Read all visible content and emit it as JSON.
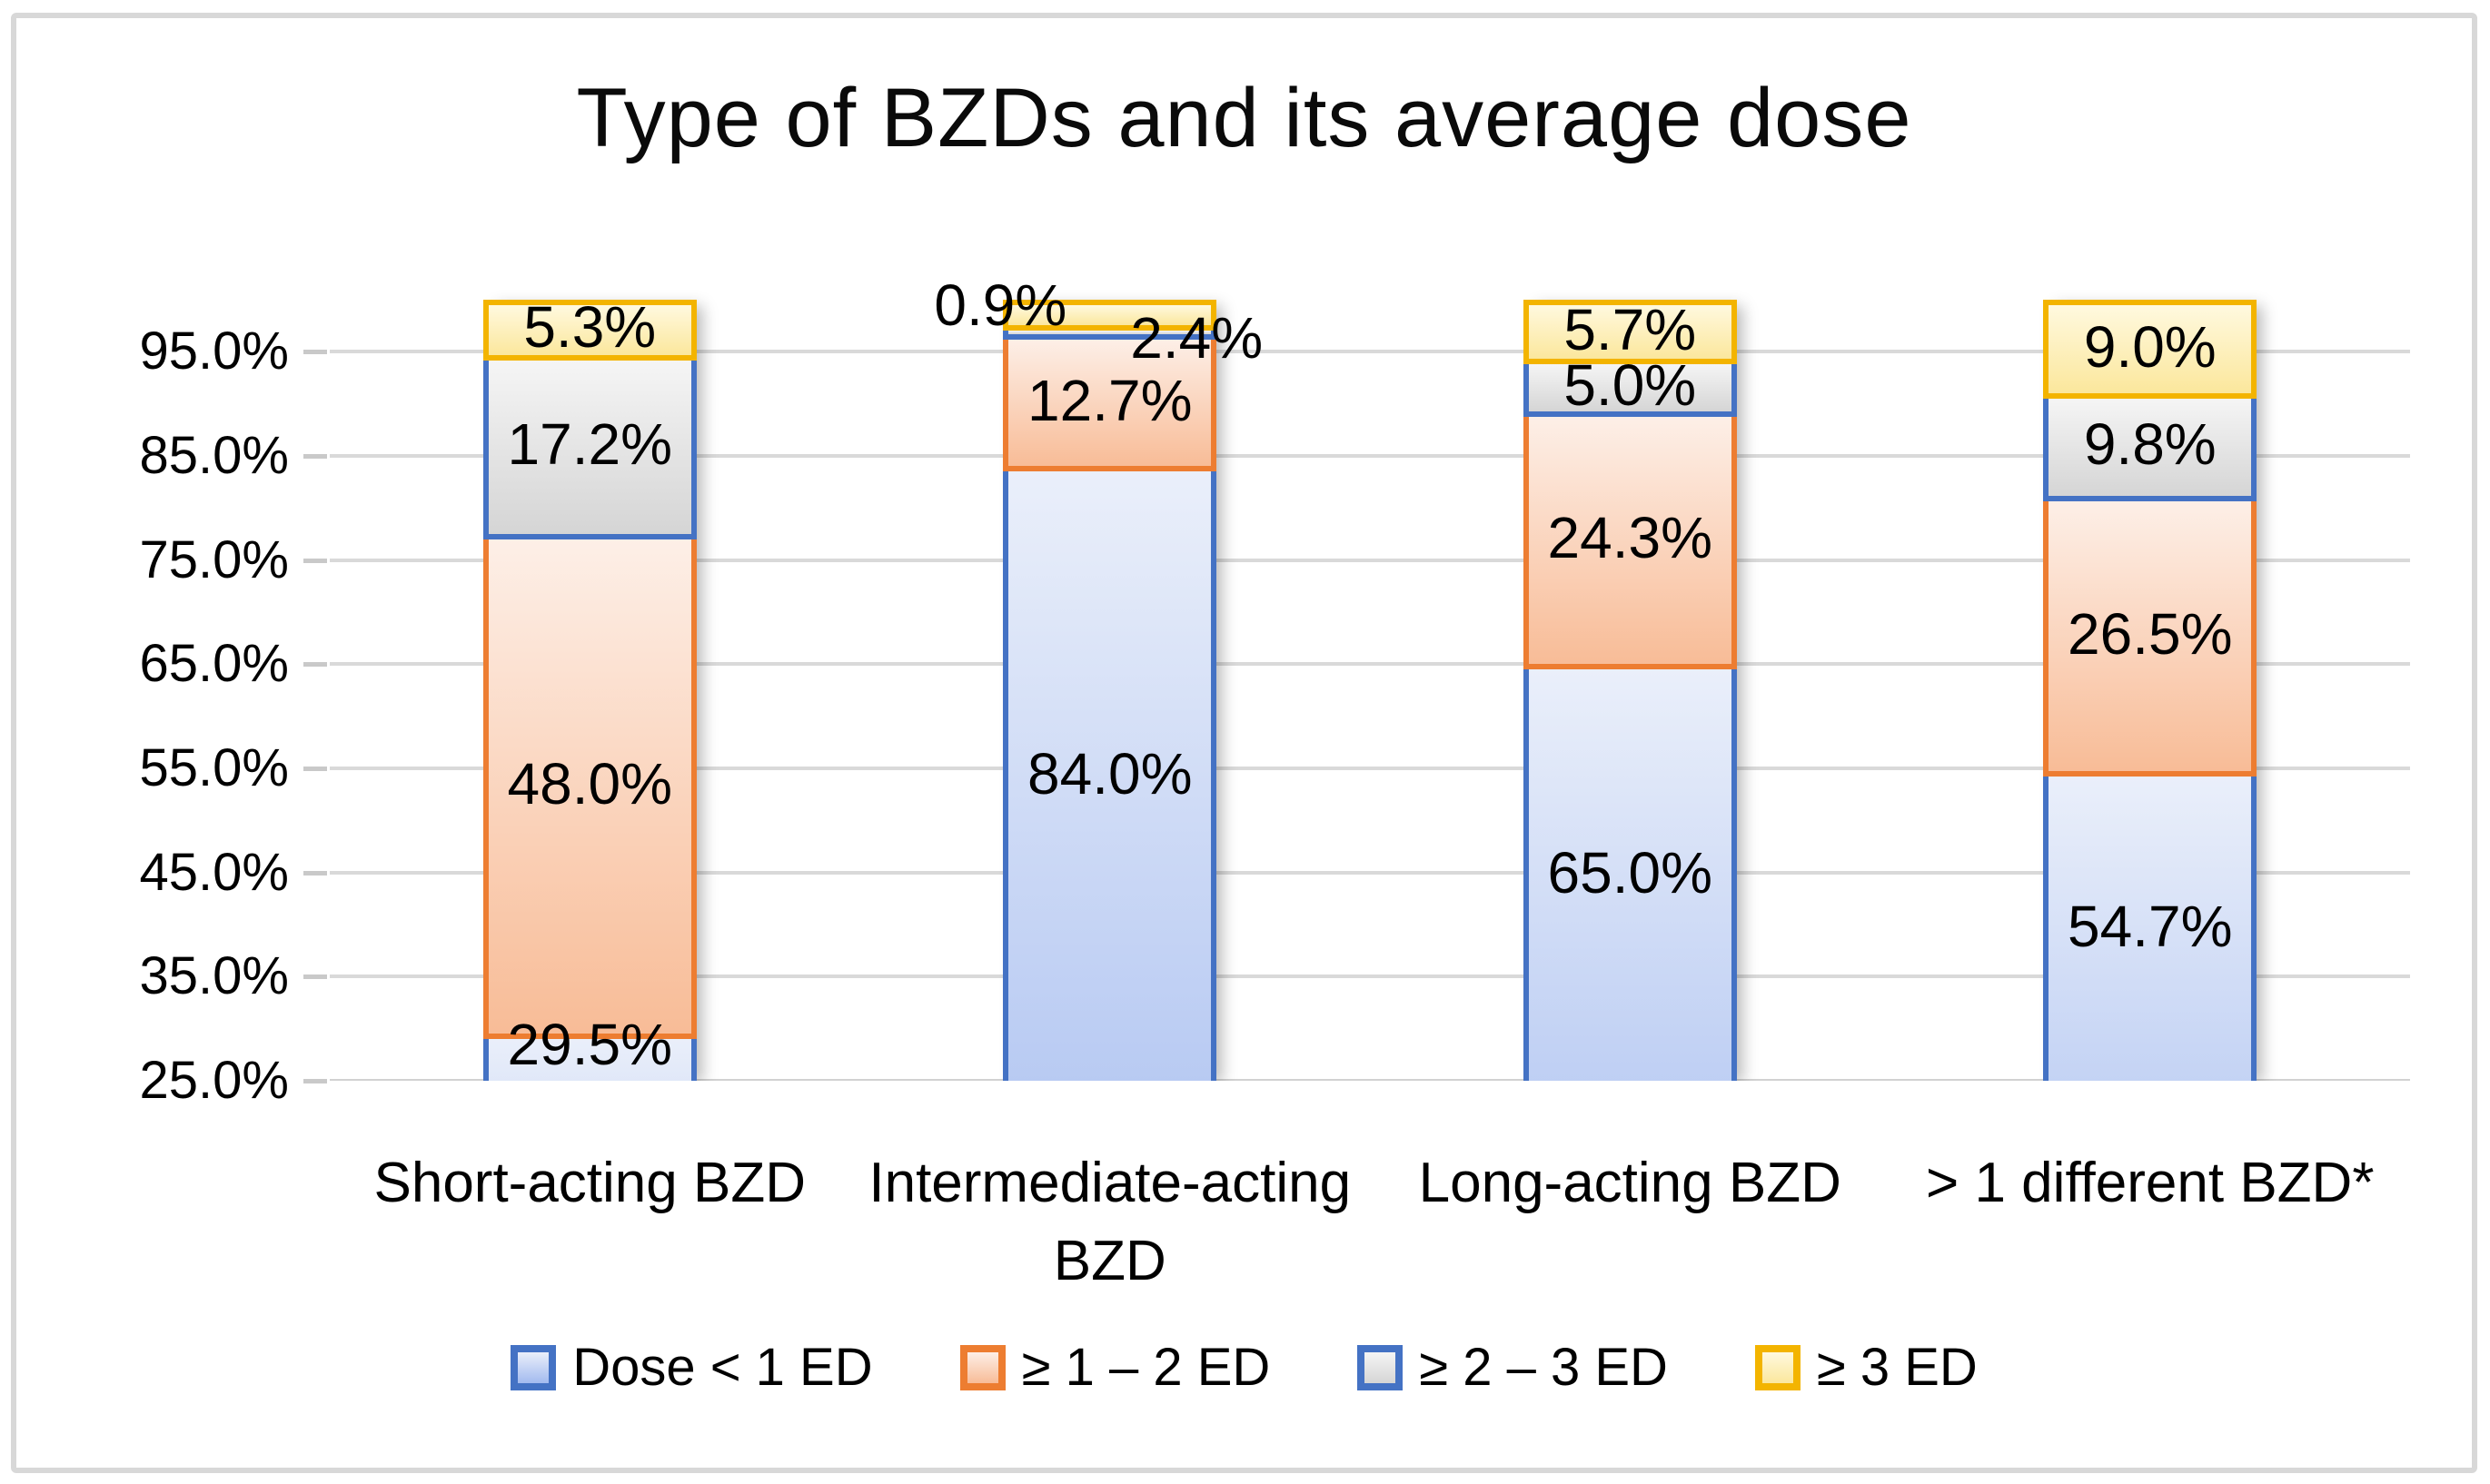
{
  "chart_data": {
    "type": "bar",
    "stacked": true,
    "title": "Type of BZDs and its average dose",
    "categories": [
      "Short-acting BZD",
      "Intermediate-acting BZD",
      "Long-acting BZD",
      "> 1 different BZD*"
    ],
    "series": [
      {
        "name": "Dose < 1 ED",
        "values": [
          29.5,
          84.0,
          65.0,
          54.7
        ],
        "labels": [
          "29.5%",
          "84.0%",
          "65.0%",
          "54.7%"
        ],
        "border_color": "#4472C4",
        "fill_top": "#EAEFFA",
        "fill_bottom": "#A2BAEF"
      },
      {
        "name": "≥ 1 – 2 ED",
        "values": [
          48.0,
          12.7,
          24.3,
          26.5
        ],
        "labels": [
          "48.0%",
          "12.7%",
          "24.3%",
          "26.5%"
        ],
        "border_color": "#ED7D31",
        "fill_top": "#FDEFE7",
        "fill_bottom": "#F8BC97"
      },
      {
        "name": "≥ 2 – 3 ED",
        "values": [
          17.2,
          0.9,
          5.0,
          9.8
        ],
        "labels": [
          "17.2%",
          "0.9%",
          "5.0%",
          "9.8%"
        ],
        "border_color": "#4472C4",
        "fill_top": "#F5F5F5",
        "fill_bottom": "#D5D5D5"
      },
      {
        "name": "≥ 3 ED",
        "values": [
          5.3,
          2.4,
          5.7,
          9.0
        ],
        "labels": [
          "5.3%",
          "2.4%",
          "5.7%",
          "9.0%"
        ],
        "border_color": "#F3B400",
        "fill_top": "#FFF9DF",
        "fill_bottom": "#FBE79C"
      }
    ],
    "label_overrides": [
      {
        "series": 2,
        "category": 1,
        "placement": "outside-left"
      },
      {
        "series": 3,
        "category": 1,
        "placement": "outside-right"
      }
    ],
    "y_axis": {
      "min": 25,
      "max": 100,
      "grid": true,
      "gridline_step": 10,
      "ticks": [
        {
          "value": 95,
          "label": "95.0%"
        },
        {
          "value": 85,
          "label": "85.0%"
        },
        {
          "value": 75,
          "label": "75.0%"
        },
        {
          "value": 65,
          "label": "65.0%"
        },
        {
          "value": 55,
          "label": "55.0%"
        },
        {
          "value": 45,
          "label": "45.0%"
        },
        {
          "value": 35,
          "label": "35.0%"
        },
        {
          "value": 25,
          "label": "25.0%"
        }
      ]
    },
    "legend": {
      "position": "bottom",
      "items": [
        "Dose < 1 ED",
        "≥ 1 – 2 ED",
        "≥ 2 – 3 ED",
        "≥ 3 ED"
      ]
    }
  },
  "colors": {
    "gridline": "#D9D9D9",
    "baseline": "#D2D2D2",
    "text": "#000000",
    "frame_border": "#D8D8D8"
  }
}
